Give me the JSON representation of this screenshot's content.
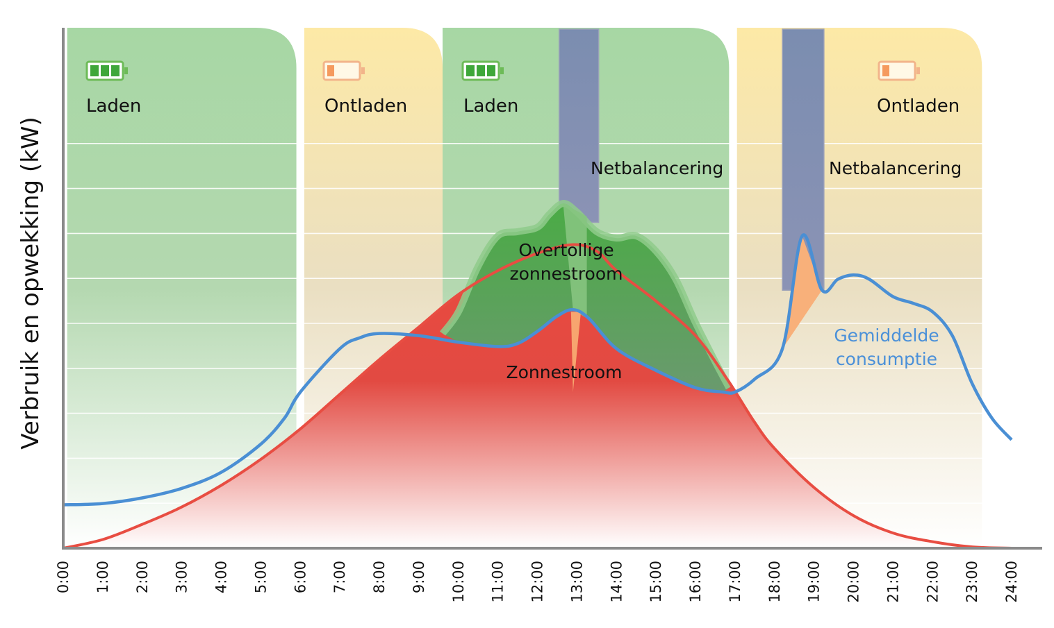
{
  "chart_data": {
    "type": "area",
    "title": "",
    "xlabel": "",
    "ylabel": "Verbruik en opwekking (kW)",
    "x_ticks": [
      "0:00",
      "1:00",
      "2:00",
      "3:00",
      "4:00",
      "5:00",
      "6:00",
      "7:00",
      "8:00",
      "9:00",
      "10:00",
      "11:00",
      "12:00",
      "13:00",
      "14:00",
      "15:00",
      "16:00",
      "17:00",
      "18:00",
      "19:00",
      "20:00",
      "21:00",
      "22:00",
      "23:00",
      "24:00"
    ],
    "xlim": [
      0,
      24
    ],
    "ylim": [
      0,
      12
    ],
    "grid": true,
    "periods": [
      {
        "label": "Laden",
        "start": 0.1,
        "end": 5.9,
        "mode": "charge",
        "icon": "battery-full-icon"
      },
      {
        "label": "Ontladen",
        "start": 6.1,
        "end": 9.6,
        "mode": "discharge",
        "icon": "battery-low-icon"
      },
      {
        "label": "Laden",
        "start": 9.6,
        "end": 16.85,
        "mode": "charge",
        "icon": "battery-full-icon"
      },
      {
        "label": "Ontladen",
        "start": 17.05,
        "end": 23.25,
        "mode": "discharge",
        "icon": "battery-low-icon"
      }
    ],
    "grid_balancing": [
      {
        "label": "Netbalancering",
        "start": 12.55,
        "end": 13.55
      },
      {
        "label": "Netbalancering",
        "start": 18.2,
        "end": 19.25
      }
    ],
    "annotations": {
      "surplus": [
        "Overtollige",
        "zonnestroom"
      ],
      "solar": "Zonnestroom",
      "consumption": [
        "Gemiddelde",
        "consumptie"
      ]
    },
    "series": [
      {
        "key": "consumption",
        "color": "#4a8fd4",
        "points": [
          [
            0,
            1
          ],
          [
            1,
            1.03
          ],
          [
            2,
            1.16
          ],
          [
            3,
            1.38
          ],
          [
            4,
            1.75
          ],
          [
            5,
            2.4
          ],
          [
            5.6,
            3.0
          ],
          [
            6,
            3.6
          ],
          [
            7,
            4.6
          ],
          [
            7.5,
            4.85
          ],
          [
            8,
            4.95
          ],
          [
            9,
            4.9
          ],
          [
            10,
            4.75
          ],
          [
            11,
            4.65
          ],
          [
            11.5,
            4.72
          ],
          [
            12,
            5.0
          ],
          [
            12.5,
            5.35
          ],
          [
            12.9,
            5.5
          ],
          [
            13.3,
            5.3
          ],
          [
            14,
            4.6
          ],
          [
            15,
            4.1
          ],
          [
            16,
            3.7
          ],
          [
            16.7,
            3.6
          ],
          [
            17,
            3.6
          ],
          [
            17.5,
            3.9
          ],
          [
            18.2,
            4.6
          ],
          [
            18.7,
            7.2
          ],
          [
            19.2,
            5.95
          ],
          [
            19.6,
            6.2
          ],
          [
            20,
            6.3
          ],
          [
            20.4,
            6.2
          ],
          [
            21,
            5.8
          ],
          [
            21.5,
            5.65
          ],
          [
            22,
            5.45
          ],
          [
            22.5,
            4.9
          ],
          [
            23,
            3.8
          ],
          [
            23.5,
            3.0
          ],
          [
            24,
            2.5
          ]
        ]
      },
      {
        "key": "solar",
        "color": "#e84d42",
        "points": [
          [
            0,
            0
          ],
          [
            1,
            0.2
          ],
          [
            2,
            0.55
          ],
          [
            3,
            0.95
          ],
          [
            4,
            1.45
          ],
          [
            5,
            2.05
          ],
          [
            6,
            2.75
          ],
          [
            7,
            3.55
          ],
          [
            8,
            4.35
          ],
          [
            9,
            5.1
          ],
          [
            10,
            5.85
          ],
          [
            11,
            6.4
          ],
          [
            12,
            6.8
          ],
          [
            12.9,
            7.0
          ],
          [
            13.5,
            6.85
          ],
          [
            14,
            6.4
          ],
          [
            15,
            5.7
          ],
          [
            16,
            4.9
          ],
          [
            16.8,
            3.9
          ],
          [
            17.5,
            2.9
          ],
          [
            18,
            2.3
          ],
          [
            19,
            1.4
          ],
          [
            20,
            0.75
          ],
          [
            21,
            0.35
          ],
          [
            22,
            0.15
          ],
          [
            23,
            0.03
          ],
          [
            24,
            0
          ]
        ]
      },
      {
        "key": "generation",
        "color": "#7cc47a",
        "points": [
          [
            9.6,
            4.95
          ],
          [
            10,
            5.45
          ],
          [
            10.5,
            6.5
          ],
          [
            11,
            7.2
          ],
          [
            11.5,
            7.3
          ],
          [
            12,
            7.4
          ],
          [
            12.3,
            7.7
          ],
          [
            12.65,
            7.95
          ],
          [
            13,
            7.75
          ],
          [
            13.5,
            7.3
          ],
          [
            14,
            7.15
          ],
          [
            14.5,
            7.2
          ],
          [
            15,
            6.85
          ],
          [
            15.5,
            6.2
          ],
          [
            16,
            5.2
          ],
          [
            16.5,
            4.3
          ],
          [
            16.85,
            3.7
          ]
        ]
      }
    ]
  }
}
